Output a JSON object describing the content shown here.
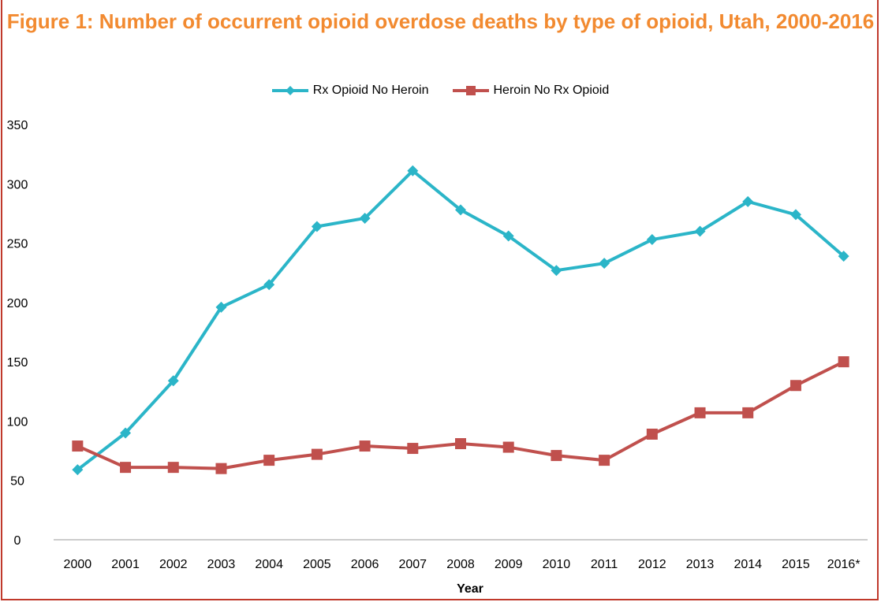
{
  "chart_data": {
    "type": "line",
    "title": "Figure 1: Number of occurrent opioid overdose deaths by type of opioid, Utah, 2000-2016",
    "xlabel": "Year",
    "ylabel": "",
    "categories": [
      "2000",
      "2001",
      "2002",
      "2003",
      "2004",
      "2005",
      "2006",
      "2007",
      "2008",
      "2009",
      "2010",
      "2011",
      "2012",
      "2013",
      "2014",
      "2015",
      "2016*"
    ],
    "ylim": [
      0,
      350
    ],
    "yticks": [
      0,
      50,
      100,
      150,
      200,
      250,
      300,
      350
    ],
    "legend_position": "top-center",
    "series": [
      {
        "name": "Rx Opioid No Heroin",
        "color": "#2bb5c8",
        "marker": "diamond",
        "values": [
          59,
          90,
          134,
          196,
          215,
          264,
          271,
          311,
          278,
          256,
          227,
          233,
          253,
          260,
          285,
          274,
          239
        ]
      },
      {
        "name": "Heroin No Rx Opioid",
        "color": "#c0504d",
        "marker": "square",
        "values": [
          79,
          61,
          61,
          60,
          67,
          72,
          79,
          77,
          81,
          78,
          71,
          67,
          89,
          107,
          107,
          130,
          150
        ]
      }
    ]
  }
}
